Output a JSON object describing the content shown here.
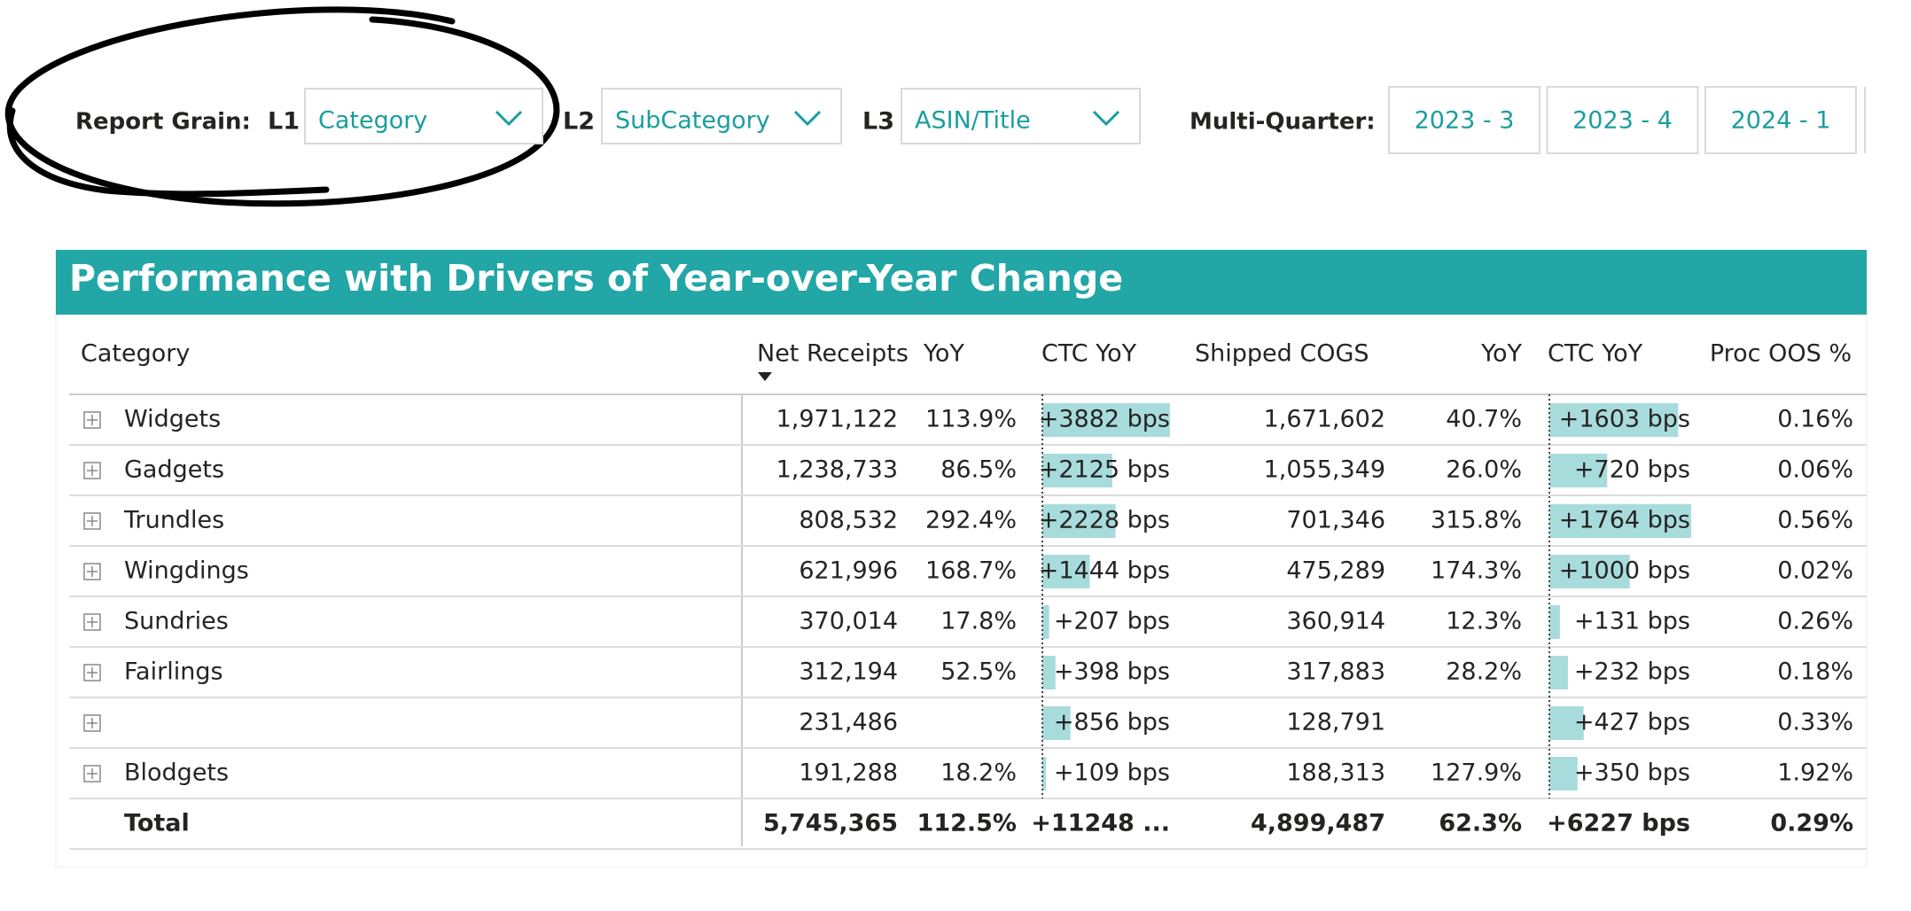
{
  "filters": {
    "report_grain_label": "Report Grain:",
    "levels": [
      {
        "label": "L1",
        "value": "Category"
      },
      {
        "label": "L2",
        "value": "SubCategory"
      },
      {
        "label": "L3",
        "value": "ASIN/Title"
      }
    ],
    "multi_quarter_label": "Multi-Quarter:",
    "quarters": [
      "2023 - 3",
      "2023 - 4",
      "2024 - 1"
    ]
  },
  "table": {
    "title": "Performance with Drivers of Year-over-Year Change",
    "columns": [
      "Category",
      "Net Receipts",
      "YoY",
      "CTC YoY",
      "Shipped COGS",
      "YoY",
      "CTC YoY",
      "Proc OOS %"
    ],
    "rows": [
      [
        "Widgets",
        "1,971,122",
        "113.9%",
        {
          "value": 3882,
          "label": "+3882 bps"
        },
        "1,671,602",
        "40.7%",
        {
          "value": 1603,
          "label": "+1603 bps"
        },
        "0.16%"
      ],
      [
        "Gadgets",
        "1,238,733",
        "86.5%",
        {
          "value": 2125,
          "label": "+2125 bps"
        },
        "1,055,349",
        "26.0%",
        {
          "value": 720,
          "label": "+720 bps"
        },
        "0.06%"
      ],
      [
        "Trundles",
        "808,532",
        "292.4%",
        {
          "value": 2228,
          "label": "+2228 bps"
        },
        "701,346",
        "315.8%",
        {
          "value": 1764,
          "label": "+1764 bps"
        },
        "0.56%"
      ],
      [
        "Wingdings",
        "621,996",
        "168.7%",
        {
          "value": 1444,
          "label": "+1444 bps"
        },
        "475,289",
        "174.3%",
        {
          "value": 1000,
          "label": "+1000 bps"
        },
        "0.02%"
      ],
      [
        "Sundries",
        "370,014",
        "17.8%",
        {
          "value": 207,
          "label": "+207 bps"
        },
        "360,914",
        "12.3%",
        {
          "value": 131,
          "label": "+131 bps"
        },
        "0.26%"
      ],
      [
        "Fairlings",
        "312,194",
        "52.5%",
        {
          "value": 398,
          "label": "+398 bps"
        },
        "317,883",
        "28.2%",
        {
          "value": 232,
          "label": "+232 bps"
        },
        "0.18%"
      ],
      [
        null,
        "231,486",
        null,
        {
          "value": 856,
          "label": "+856 bps"
        },
        "128,791",
        null,
        {
          "value": 427,
          "label": "+427 bps"
        },
        "0.33%"
      ],
      [
        "Blodgets",
        "191,288",
        "18.2%",
        {
          "value": 109,
          "label": "+109 bps"
        },
        "188,313",
        "127.9%",
        {
          "value": 350,
          "label": "+350 bps"
        },
        "1.92%"
      ]
    ],
    "total": [
      "Total",
      "5,745,365",
      "112.5%",
      {
        "value": 11248,
        "label": "+11248 ..."
      },
      "4,899,487",
      "62.3%",
      {
        "value": 6227,
        "label": "+6227 bps"
      },
      "0.29%"
    ]
  }
}
